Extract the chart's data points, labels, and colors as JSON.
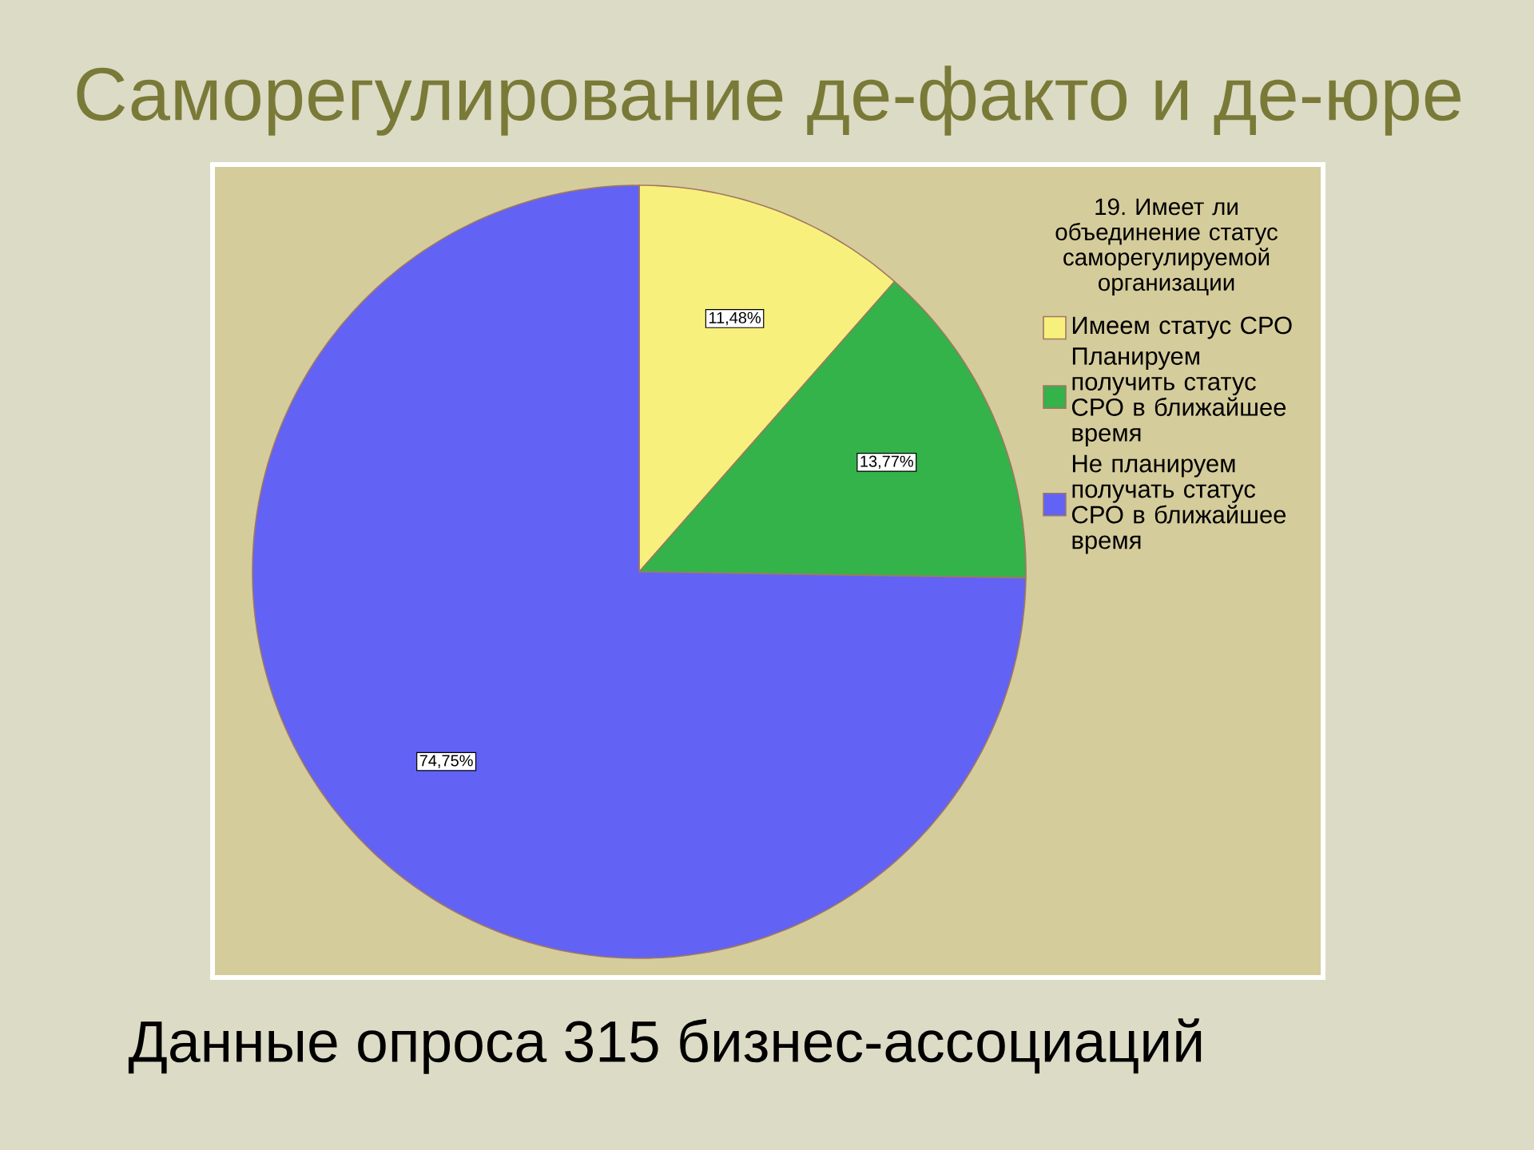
{
  "chart_data": {
    "type": "pie",
    "title": "Саморегулирование де-факто и де-юре",
    "legend_title": "19. Имеет ли объединение статус саморегулируемой организации",
    "categories": [
      "Имеем статус СРО",
      "Планируем получить статус СРО в ближайшее время",
      "Не планируем получать статус СРО в ближайшее время"
    ],
    "values": [
      11.48,
      13.77,
      74.75
    ],
    "colors": [
      "#f8f07c",
      "#33b34a",
      "#6262f5"
    ],
    "value_labels": [
      "11,48%",
      "13,77%",
      "74,75%"
    ],
    "legend": "top right",
    "annotations": [
      "Данные опроса 315 бизнес-ассоциаций"
    ]
  }
}
